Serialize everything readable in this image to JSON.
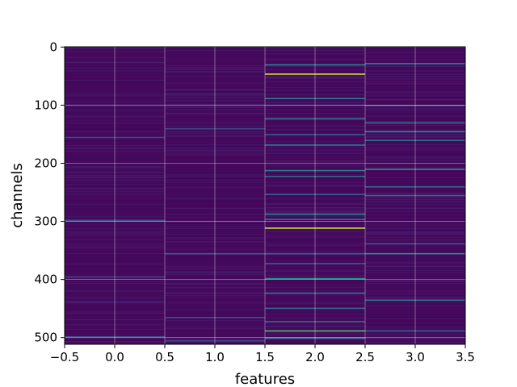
{
  "chart_data": {
    "type": "heatmap",
    "title": "",
    "xlabel": "features",
    "ylabel": "channels",
    "x_ticks": [
      -0.5,
      0.0,
      0.5,
      1.0,
      1.5,
      2.0,
      2.5,
      3.0,
      3.5
    ],
    "x_tick_labels": [
      "−0.5",
      "0.0",
      "0.5",
      "1.0",
      "1.5",
      "2.0",
      "2.5",
      "3.0",
      "3.5"
    ],
    "y_ticks": [
      0,
      100,
      200,
      300,
      400,
      500
    ],
    "y_tick_labels": [
      "0",
      "100",
      "200",
      "300",
      "400",
      "500"
    ],
    "xlim": [
      -0.5,
      3.5
    ],
    "ylim": [
      511.5,
      -0.5
    ],
    "grid": true,
    "colormap": "viridis",
    "features": [
      0,
      1,
      2,
      3
    ],
    "n_channels": 512,
    "base_value": 0.02,
    "highlights": [
      {
        "feature": 2,
        "channel": 46,
        "value": 0.93
      },
      {
        "feature": 2,
        "channel": 311,
        "value": 0.9
      },
      {
        "feature": 2,
        "channel": 30,
        "value": 0.45
      },
      {
        "feature": 2,
        "channel": 88,
        "value": 0.42
      },
      {
        "feature": 2,
        "channel": 123,
        "value": 0.4
      },
      {
        "feature": 2,
        "channel": 150,
        "value": 0.3
      },
      {
        "feature": 2,
        "channel": 168,
        "value": 0.4
      },
      {
        "feature": 2,
        "channel": 212,
        "value": 0.42
      },
      {
        "feature": 2,
        "channel": 222,
        "value": 0.35
      },
      {
        "feature": 2,
        "channel": 253,
        "value": 0.3
      },
      {
        "feature": 2,
        "channel": 287,
        "value": 0.45
      },
      {
        "feature": 2,
        "channel": 296,
        "value": 0.38
      },
      {
        "feature": 2,
        "channel": 355,
        "value": 0.3
      },
      {
        "feature": 2,
        "channel": 372,
        "value": 0.3
      },
      {
        "feature": 2,
        "channel": 398,
        "value": 0.5
      },
      {
        "feature": 2,
        "channel": 423,
        "value": 0.4
      },
      {
        "feature": 2,
        "channel": 449,
        "value": 0.35
      },
      {
        "feature": 2,
        "channel": 472,
        "value": 0.35
      },
      {
        "feature": 2,
        "channel": 488,
        "value": 0.7
      },
      {
        "feature": 2,
        "channel": 500,
        "value": 0.45
      },
      {
        "feature": 3,
        "channel": 28,
        "value": 0.45
      },
      {
        "feature": 3,
        "channel": 100,
        "value": 0.3
      },
      {
        "feature": 3,
        "channel": 130,
        "value": 0.4
      },
      {
        "feature": 3,
        "channel": 145,
        "value": 0.5
      },
      {
        "feature": 3,
        "channel": 160,
        "value": 0.4
      },
      {
        "feature": 3,
        "channel": 210,
        "value": 0.45
      },
      {
        "feature": 3,
        "channel": 240,
        "value": 0.35
      },
      {
        "feature": 3,
        "channel": 255,
        "value": 0.35
      },
      {
        "feature": 3,
        "channel": 338,
        "value": 0.3
      },
      {
        "feature": 3,
        "channel": 355,
        "value": 0.5
      },
      {
        "feature": 3,
        "channel": 435,
        "value": 0.4
      },
      {
        "feature": 3,
        "channel": 488,
        "value": 0.35
      },
      {
        "feature": 0,
        "channel": 155,
        "value": 0.22
      },
      {
        "feature": 0,
        "channel": 298,
        "value": 0.25
      },
      {
        "feature": 0,
        "channel": 395,
        "value": 0.22
      },
      {
        "feature": 0,
        "channel": 498,
        "value": 0.25
      },
      {
        "feature": 1,
        "channel": 140,
        "value": 0.22
      },
      {
        "feature": 1,
        "channel": 355,
        "value": 0.28
      },
      {
        "feature": 1,
        "channel": 465,
        "value": 0.25
      },
      {
        "feature": 1,
        "channel": 505,
        "value": 0.22
      }
    ]
  }
}
